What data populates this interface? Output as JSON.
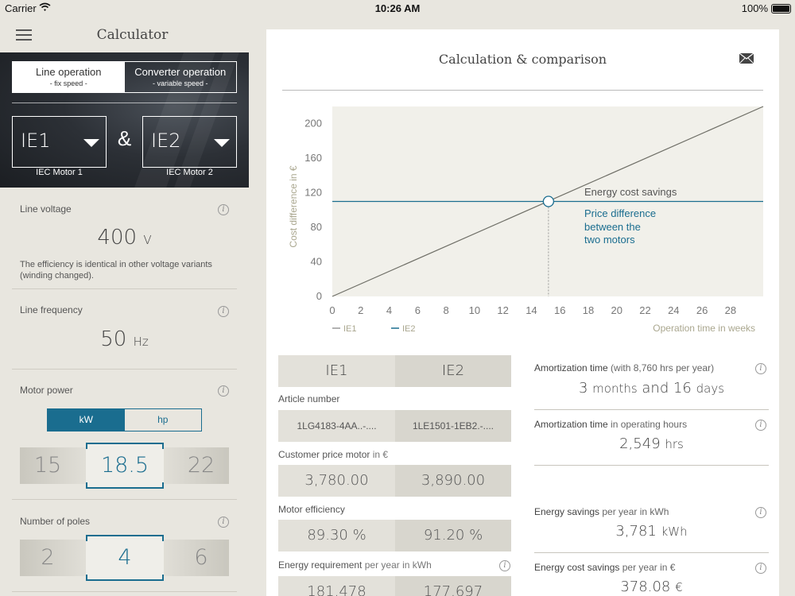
{
  "status_bar": {
    "carrier": "Carrier",
    "time": "10:26 AM",
    "battery": "100%"
  },
  "sidebar": {
    "title": "Calculator",
    "operation_modes": [
      {
        "label": "Line operation",
        "sub": "- fix speed -",
        "active": true
      },
      {
        "label": "Converter operation",
        "sub": "- variable speed -",
        "active": false
      }
    ],
    "motor1": {
      "value": "IE1",
      "caption": "IEC Motor 1"
    },
    "motor2": {
      "value": "IE2",
      "caption": "IEC Motor 2"
    },
    "ampersand": "&",
    "line_voltage": {
      "label": "Line voltage",
      "value": "400",
      "unit": "V",
      "note": "The efficiency is identical in other voltage variants (winding changed)."
    },
    "line_frequency": {
      "label": "Line frequency",
      "value": "50",
      "unit": "Hz"
    },
    "motor_power": {
      "label": "Motor power",
      "units": [
        "kW",
        "hp"
      ],
      "active_unit": "kW",
      "prev": "15",
      "selected": "18.5",
      "next": "22"
    },
    "poles": {
      "label": "Number of poles",
      "prev": "2",
      "selected": "4",
      "next": "6"
    },
    "info_glyph": "i"
  },
  "main": {
    "title": "Calculation & comparison",
    "mail_icon": "envelope-icon"
  },
  "chart_data": {
    "type": "line",
    "ylabel": "Cost difference in €",
    "xlabel": "Operation time in weeks",
    "xlim": [
      0,
      30.3
    ],
    "ylim": [
      0,
      220
    ],
    "x_ticks": [
      0,
      2,
      4,
      6,
      8,
      10,
      12,
      14,
      16,
      18,
      20,
      22,
      24,
      26,
      28
    ],
    "y_ticks": [
      0,
      40,
      80,
      120,
      160,
      200
    ],
    "legend": [
      "IE1",
      "IE2"
    ],
    "series": [
      {
        "name": "Energy cost savings",
        "points": [
          [
            0,
            0
          ],
          [
            30.3,
            220
          ]
        ],
        "color": "#6e6e66"
      },
      {
        "name": "Price difference between the two motors",
        "points": [
          [
            0,
            110
          ],
          [
            30.3,
            110
          ]
        ],
        "color": "#1a6d8f"
      }
    ],
    "annotations": {
      "savings_label": "Energy cost savings",
      "price_label_lines": [
        "Price difference",
        "between the",
        "two motors"
      ]
    },
    "intersection": {
      "x": 15.2,
      "y": 110
    }
  },
  "comparison_table": {
    "headers": [
      "IE1",
      "IE2"
    ],
    "rows": [
      {
        "label": "Article number",
        "label_extra": "",
        "values": [
          "1LG4183-4AA..-....",
          "1LE1501-1EB2.-...."
        ],
        "size": "small",
        "info": false
      },
      {
        "label": "Customer price motor",
        "label_extra": " in €",
        "values": [
          "3,780.00",
          "3,890.00"
        ],
        "size": "big",
        "info": false
      },
      {
        "label": "Motor efficiency",
        "label_extra": "",
        "values": [
          "89.30 %",
          "91.20 %"
        ],
        "size": "big",
        "info": false
      },
      {
        "label": "Energy requirement",
        "label_extra": " per year in kWh",
        "values": [
          "181,478",
          "177,697"
        ],
        "size": "big",
        "info": true
      }
    ]
  },
  "results": [
    {
      "label": "Amortization time",
      "label_extra": " (with 8,760 hrs per year)",
      "value": "3",
      "unit": "months",
      "value2": "and 16",
      "unit2": "days"
    },
    {
      "label": "Amortization time",
      "label_extra": " in operating hours",
      "value": "2,549",
      "unit": "hrs"
    },
    {
      "label": "Energy savings",
      "label_extra": " per year in kWh",
      "value": "3,781",
      "unit": "kWh"
    },
    {
      "label": "Energy cost savings",
      "label_extra": " per year in €",
      "value": "378.08",
      "unit": "€"
    }
  ]
}
